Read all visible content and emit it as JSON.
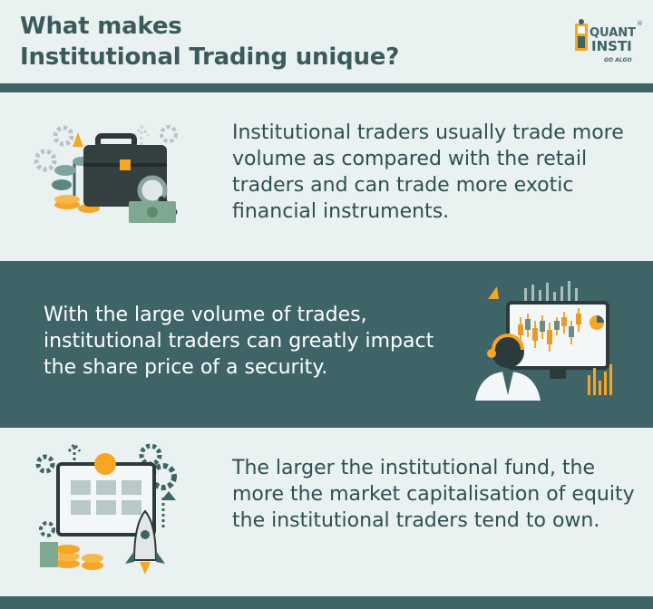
{
  "header": {
    "title_line1": "What makes",
    "title_line2": "Institutional Trading unique?"
  },
  "logo": {
    "word1": "QUANT",
    "word2": "INSTI",
    "tagline": "GO ALGO",
    "registered": "®"
  },
  "sections": [
    {
      "text": "Institutional traders usually trade more volume as compared with the retail traders and can trade more exotic financial instruments.",
      "illustration": "briefcase-icon"
    },
    {
      "text": "With the large volume of trades, institutional traders can greatly impact the share price of a security.",
      "illustration": "trader-monitor-icon"
    },
    {
      "text": "The larger the institutional fund, the more the market capitalisation of equity the institutional traders tend to own.",
      "illustration": "market-cap-icon"
    }
  ],
  "colors": {
    "teal_dark": "#3e6467",
    "background_light": "#e9f1f1",
    "accent_orange": "#f5a623"
  }
}
